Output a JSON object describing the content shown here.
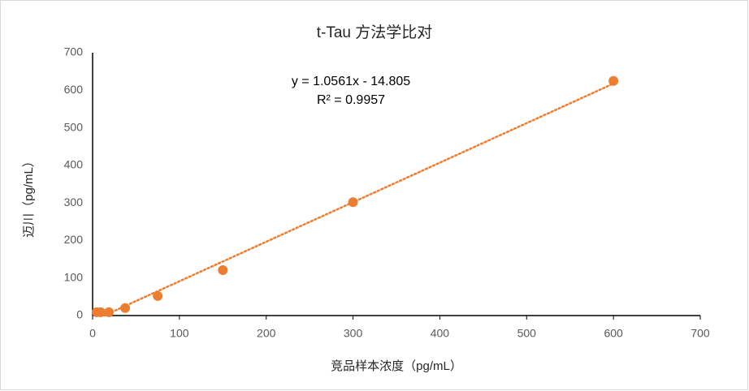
{
  "chart_data": {
    "type": "scatter",
    "title": "t-Tau 方法学比对",
    "x_label": "竞品样本浓度（pg/mL）",
    "y_label": "迈川（pg/mL）",
    "annotations": [
      "y = 1.0561x - 14.805",
      "R² = 0.9957"
    ],
    "x": [
      4.69,
      9.38,
      18.75,
      37.5,
      75,
      150,
      300,
      600
    ],
    "values": [
      9,
      9,
      9,
      20,
      52,
      121,
      302,
      625
    ],
    "color": "#ed7d31",
    "trendline": true,
    "xlim": [
      0,
      700
    ],
    "xticks": [
      0,
      100,
      200,
      300,
      400,
      500,
      600,
      700
    ],
    "ylim": [
      0,
      700
    ],
    "yticks": [
      0,
      100,
      200,
      300,
      400,
      500,
      600,
      700
    ],
    "grid": false
  }
}
